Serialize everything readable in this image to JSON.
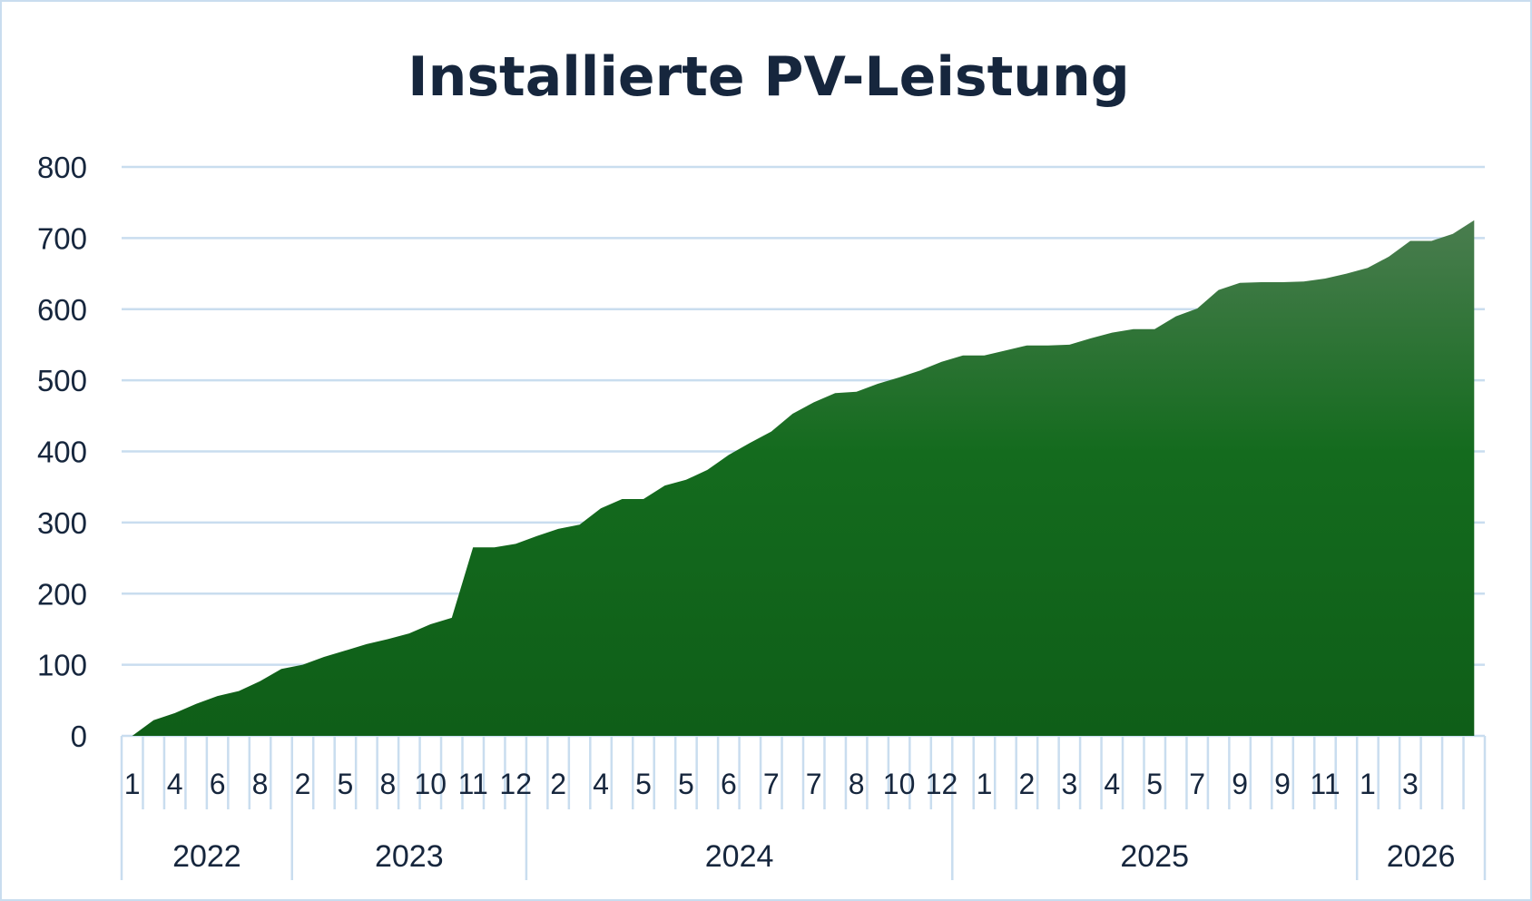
{
  "chart_data": {
    "type": "area",
    "title": "Installierte PV-Leistung",
    "xlabel": "",
    "ylabel": "",
    "ylim": [
      0,
      800
    ],
    "yticks": [
      0,
      100,
      200,
      300,
      400,
      500,
      600,
      700,
      800
    ],
    "grid": true,
    "legend": "none",
    "fill_color_top": "#4a7d4f",
    "fill_color_bottom": "#0f5e18",
    "gridline_color": "#c9ddef",
    "text_color": "#16263d",
    "values": [
      0,
      22,
      32,
      45,
      56,
      63,
      77,
      94,
      100,
      111,
      120,
      129,
      136,
      144,
      157,
      166,
      265,
      265,
      270,
      281,
      291,
      297,
      320,
      333,
      333,
      352,
      360,
      374,
      395,
      412,
      428,
      453,
      469,
      482,
      484,
      495,
      504,
      514,
      526,
      535,
      535,
      542,
      549,
      549,
      550,
      559,
      567,
      572,
      572,
      590,
      601,
      627,
      637,
      638,
      638,
      639,
      643,
      650,
      658,
      674,
      696,
      696,
      706,
      725
    ],
    "tick_labels": [
      "1",
      "4",
      "6",
      "8",
      "2",
      "5",
      "8",
      "10",
      "11",
      "12",
      "2",
      "4",
      "5",
      "5",
      "6",
      "7",
      "7",
      "8",
      "10",
      "12",
      "1",
      "2",
      "3",
      "4",
      "5",
      "7",
      "9",
      "9",
      "11",
      "1",
      "3"
    ],
    "year_groups": [
      {
        "label": "2022",
        "count": 8
      },
      {
        "label": "2023",
        "count": 11
      },
      {
        "label": "2024",
        "count": 20
      },
      {
        "label": "2025",
        "count": 19
      },
      {
        "label": "2026",
        "count": 6
      }
    ]
  }
}
